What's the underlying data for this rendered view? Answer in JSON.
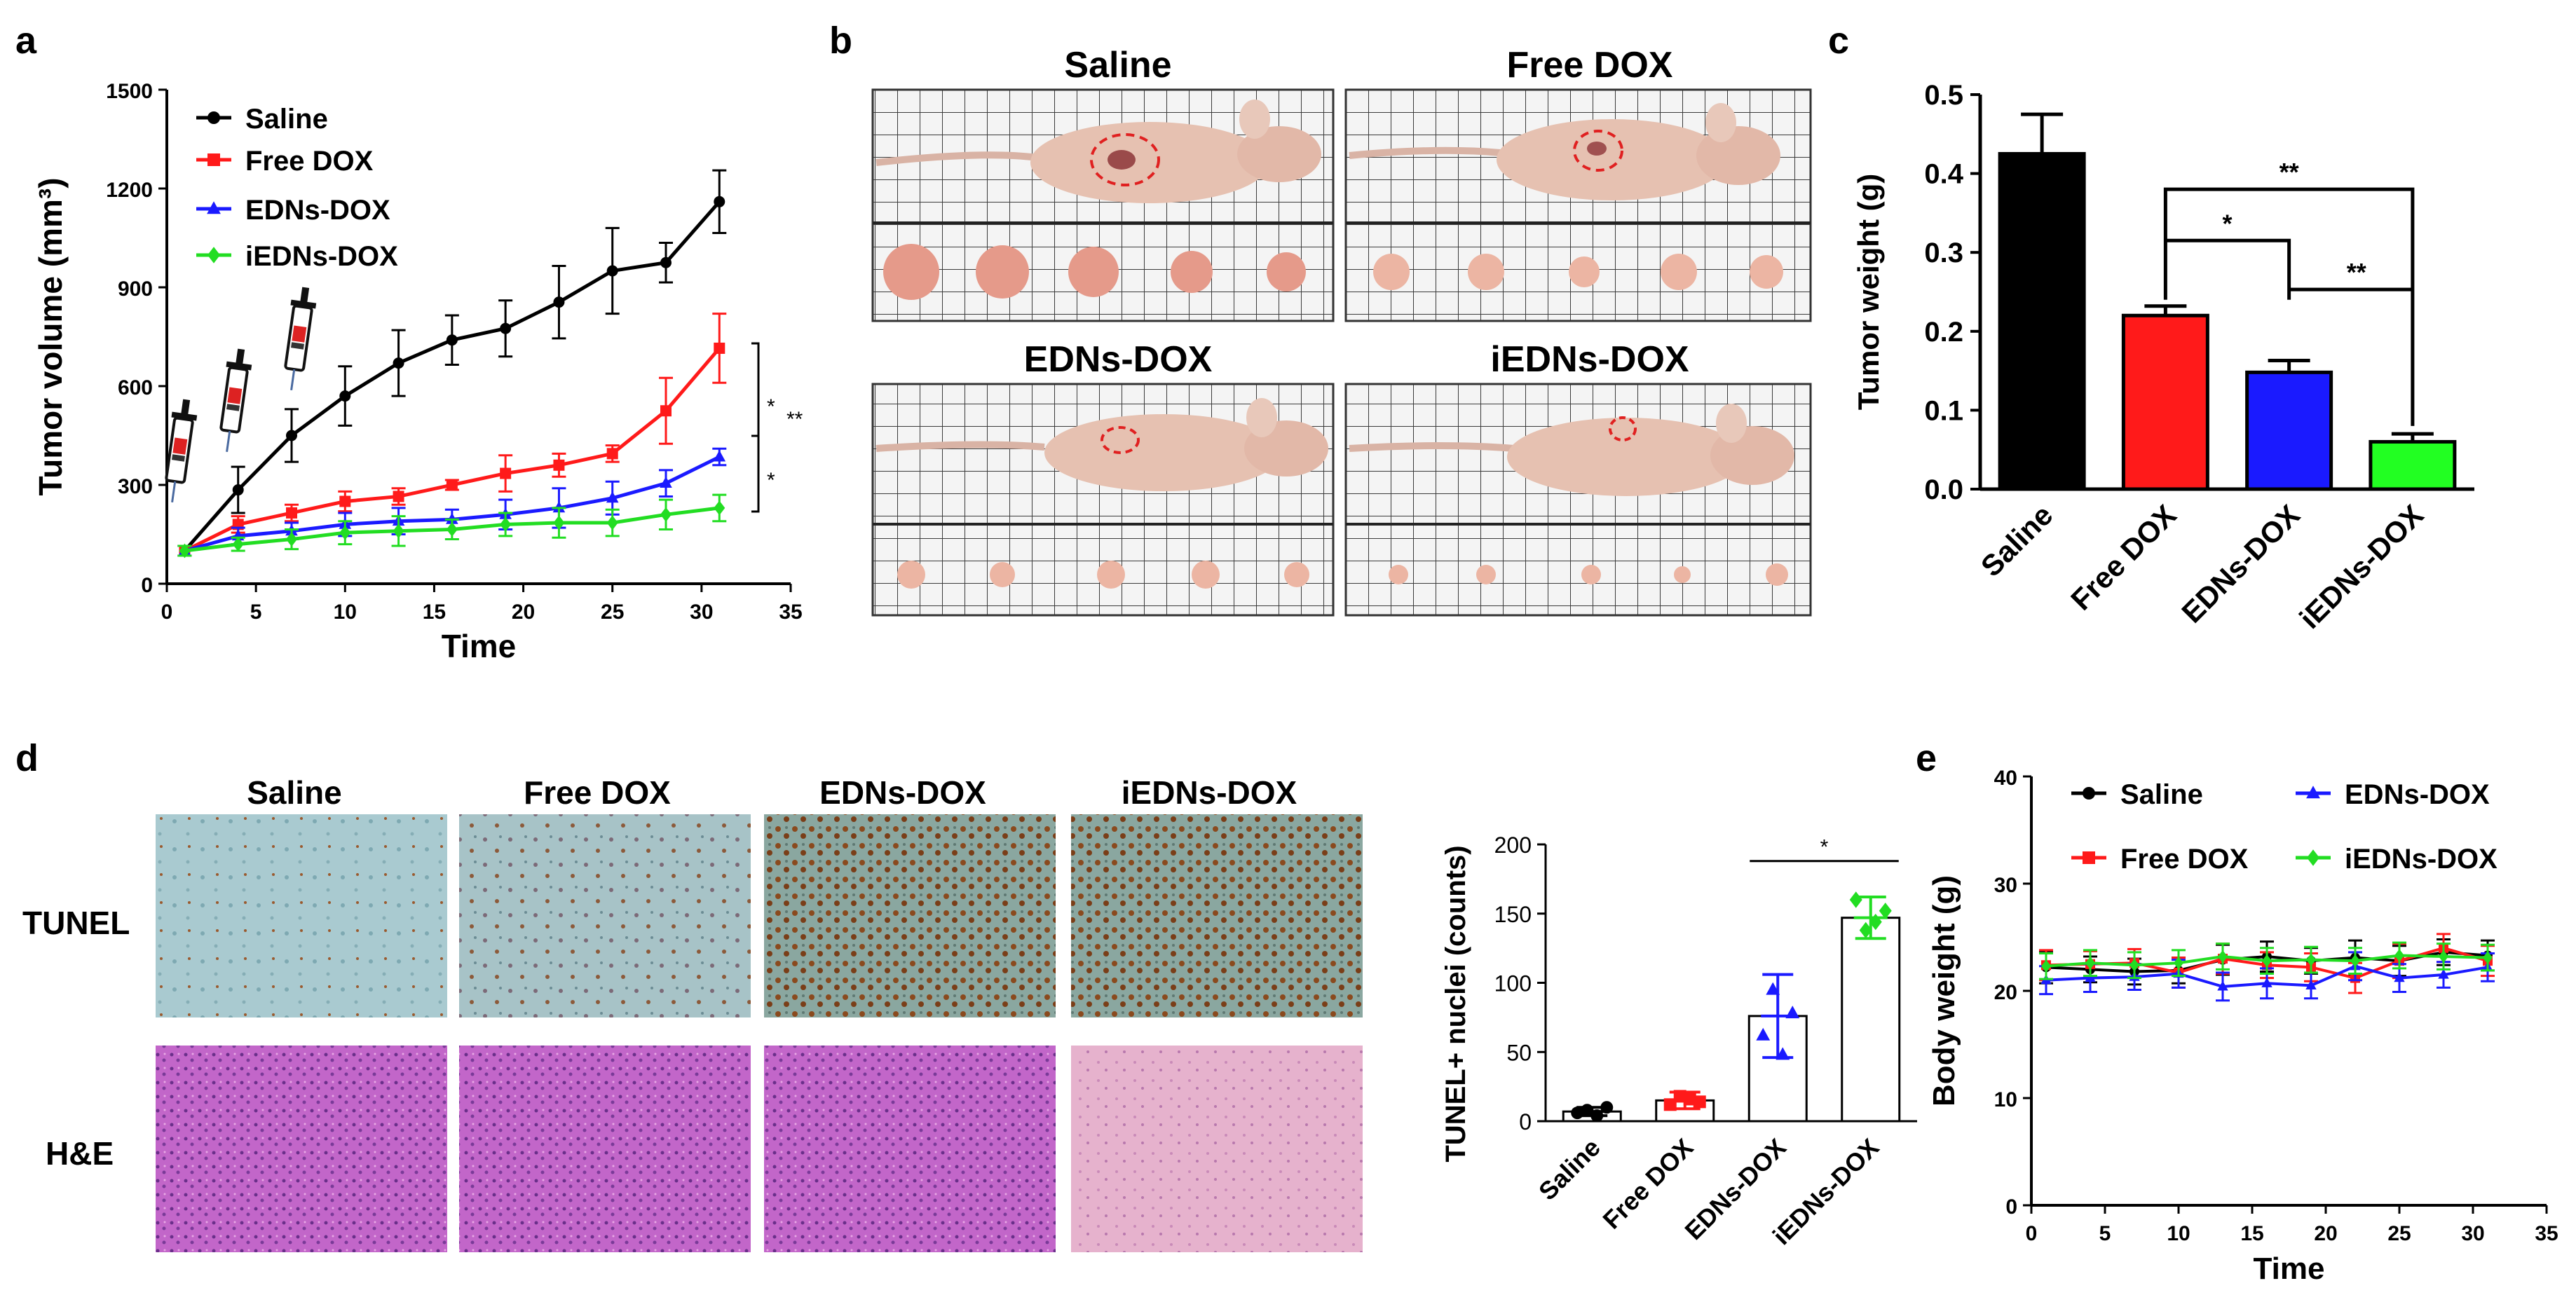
{
  "figure": {
    "panels": [
      {
        "label": "a"
      },
      {
        "label": "b"
      },
      {
        "label": "c"
      },
      {
        "label": "d"
      },
      {
        "label": "e"
      }
    ]
  },
  "colors": {
    "saline": "#000000",
    "free_dox": "#ff1a1a",
    "edns_dox": "#1a1aff",
    "iedns_dox": "#22dd22"
  },
  "chart_data": [
    {
      "id": "a",
      "type": "line",
      "xlabel": "Time",
      "ylabel": "Tumor volume (mm³)",
      "xlim": [
        0,
        35
      ],
      "ylim": [
        0,
        1500
      ],
      "xticks": [
        0,
        5,
        10,
        15,
        20,
        25,
        30,
        35
      ],
      "yticks": [
        0,
        300,
        600,
        900,
        1200,
        1500
      ],
      "injection_days": [
        1,
        4,
        7.5
      ],
      "series": [
        {
          "name": "Saline",
          "color": "#000000",
          "marker": "circle",
          "x": [
            1,
            4,
            7,
            10,
            13,
            16,
            19,
            22,
            25,
            28,
            31
          ],
          "y": [
            100,
            285,
            450,
            570,
            670,
            740,
            775,
            855,
            950,
            975,
            1160
          ],
          "err": [
            15,
            70,
            80,
            90,
            100,
            75,
            85,
            110,
            130,
            60,
            95
          ]
        },
        {
          "name": "Free DOX",
          "color": "#ff1a1a",
          "marker": "square",
          "x": [
            1,
            4,
            7,
            10,
            13,
            16,
            19,
            22,
            25,
            28,
            31
          ],
          "y": [
            100,
            180,
            215,
            250,
            265,
            300,
            335,
            360,
            395,
            525,
            715
          ],
          "err": [
            15,
            25,
            25,
            30,
            25,
            15,
            55,
            35,
            25,
            100,
            105
          ]
        },
        {
          "name": "EDNs-DOX",
          "color": "#1a1aff",
          "marker": "triangle",
          "x": [
            1,
            4,
            7,
            10,
            13,
            16,
            19,
            22,
            25,
            28,
            31
          ],
          "y": [
            100,
            145,
            160,
            180,
            190,
            195,
            210,
            230,
            260,
            305,
            385
          ],
          "err": [
            15,
            25,
            25,
            35,
            40,
            30,
            45,
            60,
            50,
            40,
            25
          ]
        },
        {
          "name": "iEDNs-DOX",
          "color": "#22dd22",
          "marker": "diamond",
          "x": [
            1,
            4,
            7,
            10,
            13,
            16,
            19,
            22,
            25,
            28,
            31
          ],
          "y": [
            100,
            120,
            135,
            155,
            160,
            165,
            180,
            185,
            185,
            210,
            230
          ],
          "err": [
            15,
            20,
            30,
            35,
            45,
            30,
            35,
            45,
            40,
            45,
            40
          ]
        }
      ],
      "significance": [
        {
          "label": "*",
          "between": [
            "Free DOX",
            "EDNs-DOX"
          ]
        },
        {
          "label": "*",
          "between": [
            "EDNs-DOX",
            "iEDNs-DOX"
          ]
        },
        {
          "label": "**",
          "between": [
            "Free DOX",
            "iEDNs-DOX"
          ]
        }
      ]
    },
    {
      "id": "c",
      "type": "bar",
      "ylabel": "Tumor weight (g)",
      "ylim": [
        0,
        0.5
      ],
      "yticks": [
        0.0,
        0.1,
        0.2,
        0.3,
        0.4,
        0.5
      ],
      "categories": [
        "Saline",
        "Free DOX",
        "EDNs-DOX",
        "iEDNs-DOX"
      ],
      "values": [
        0.425,
        0.22,
        0.148,
        0.06
      ],
      "err": [
        0.05,
        0.012,
        0.015,
        0.01
      ],
      "colors": [
        "#000000",
        "#ff1a1a",
        "#1a1aff",
        "#22ff22"
      ],
      "significance": [
        {
          "label": "**",
          "between": [
            "Free DOX",
            "iEDNs-DOX"
          ]
        },
        {
          "label": "*",
          "between": [
            "Free DOX",
            "EDNs-DOX"
          ]
        },
        {
          "label": "**",
          "between": [
            "EDNs-DOX",
            "iEDNs-DOX"
          ]
        }
      ]
    },
    {
      "id": "d",
      "type": "bar",
      "ylabel": "TUNEL+ nuclei (counts)",
      "ylim": [
        0,
        200
      ],
      "yticks": [
        0,
        50,
        100,
        150,
        200
      ],
      "categories": [
        "Saline",
        "Free DOX",
        "EDNs-DOX",
        "iEDNs-DOX"
      ],
      "values": [
        7,
        15,
        76,
        147
      ],
      "err": [
        3,
        6,
        30,
        15
      ],
      "point_colors": [
        "#000000",
        "#ff1a1a",
        "#1a1aff",
        "#22dd22"
      ],
      "points": [
        [
          6,
          8,
          4,
          10
        ],
        [
          12,
          18,
          16,
          14
        ],
        [
          62,
          95,
          48,
          78
        ],
        [
          160,
          138,
          144,
          152
        ]
      ],
      "significance": [
        {
          "label": "*",
          "between": [
            "EDNs-DOX",
            "iEDNs-DOX"
          ]
        }
      ]
    },
    {
      "id": "e",
      "type": "line",
      "xlabel": "Time",
      "ylabel": "Body weight (g)",
      "xlim": [
        0,
        35
      ],
      "ylim": [
        0,
        40
      ],
      "xticks": [
        0,
        5,
        10,
        15,
        20,
        25,
        30,
        35
      ],
      "yticks": [
        0,
        10,
        20,
        30,
        40
      ],
      "series": [
        {
          "name": "Saline",
          "color": "#000000",
          "marker": "circle",
          "x": [
            1,
            4,
            7,
            10,
            13,
            16,
            19,
            22,
            25,
            28,
            31
          ],
          "y": [
            22.2,
            22.0,
            21.8,
            21.9,
            22.9,
            23.2,
            22.8,
            23.1,
            22.8,
            23.6,
            23.3
          ],
          "err": [
            1.5,
            1.2,
            1.2,
            1.2,
            1.4,
            1.4,
            1.2,
            1.6,
            1.4,
            1.2,
            1.4
          ]
        },
        {
          "name": "Free DOX",
          "color": "#ff1a1a",
          "marker": "square",
          "x": [
            1,
            4,
            7,
            10,
            13,
            16,
            19,
            22,
            25,
            28,
            31
          ],
          "y": [
            22.4,
            22.5,
            22.6,
            21.7,
            23.0,
            22.4,
            22.2,
            21.2,
            22.8,
            24.0,
            22.8
          ],
          "err": [
            1.4,
            1.2,
            1.3,
            1.4,
            1.4,
            1.2,
            1.3,
            1.4,
            1.6,
            1.3,
            1.4
          ]
        },
        {
          "name": "EDNs-DOX",
          "color": "#1a1aff",
          "marker": "triangle",
          "x": [
            1,
            4,
            7,
            10,
            13,
            16,
            19,
            22,
            25,
            28,
            31
          ],
          "y": [
            21.0,
            21.2,
            21.3,
            21.6,
            20.4,
            20.7,
            20.5,
            22.3,
            21.2,
            21.5,
            22.2
          ],
          "err": [
            1.3,
            1.3,
            1.2,
            1.3,
            1.3,
            1.4,
            1.2,
            1.3,
            1.3,
            1.2,
            1.3
          ]
        },
        {
          "name": "iEDNs-DOX",
          "color": "#22dd22",
          "marker": "diamond",
          "x": [
            1,
            4,
            7,
            10,
            13,
            16,
            19,
            22,
            25,
            28,
            31
          ],
          "y": [
            22.3,
            22.6,
            22.4,
            22.6,
            23.2,
            22.8,
            22.9,
            22.8,
            23.3,
            23.2,
            23.1
          ],
          "err": [
            1.2,
            1.2,
            1.2,
            1.2,
            1.2,
            1.2,
            1.2,
            1.2,
            1.2,
            1.2,
            1.2
          ]
        }
      ]
    }
  ],
  "panel_b": {
    "groups": [
      "Saline",
      "Free DOX",
      "EDNs-DOX",
      "iEDNs-DOX"
    ]
  },
  "panel_d_images": {
    "columns": [
      "Saline",
      "Free DOX",
      "EDNs-DOX",
      "iEDNs-DOX"
    ],
    "rows": [
      "TUNEL",
      "H&E"
    ]
  }
}
